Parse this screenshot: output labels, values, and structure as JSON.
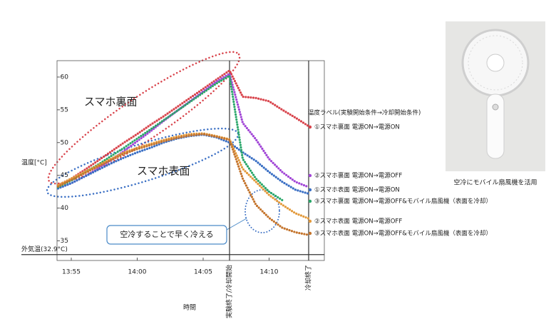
{
  "chart_data": {
    "type": "line",
    "y_label": "温度[°C]",
    "x_label": "時間",
    "categories": [
      null,
      "13:55",
      null,
      null,
      null,
      null,
      "14:00",
      null,
      null,
      null,
      null,
      "14:05",
      null,
      "実験終了/冷却開始",
      null,
      null,
      "14:10",
      null,
      null,
      "冷却終了"
    ],
    "ylim": [
      32,
      62.5
    ],
    "yticks": [
      35,
      40,
      45,
      50,
      55,
      60
    ],
    "hlines": [
      {
        "value": 32.9,
        "label": "外気温(32.9°C)"
      }
    ],
    "legend_title": "温度ラベル(実験開始条件→冷却開始条件)",
    "annotations": [
      "スマホ裏面",
      "スマホ表面",
      "空冷することで早く冷える"
    ],
    "series": [
      {
        "name": "①スマホ裏面 電源ON→電源ON",
        "color": "#d8434b",
        "values": [
          43.5,
          44.5,
          45.8,
          47.2,
          48.6,
          50,
          51.3,
          52.7,
          54,
          55.4,
          56.8,
          58.2,
          59.6,
          61,
          57,
          56.8,
          56.3,
          55,
          53.8,
          52.5
        ]
      },
      {
        "name": "②スマホ裏面 電源ON→電源OFF",
        "color": "#a145d6",
        "values": [
          43,
          43.8,
          44.8,
          46,
          47.3,
          48.7,
          50.2,
          51.7,
          53.3,
          54.8,
          56.3,
          57.8,
          59.3,
          60.5,
          53,
          50.5,
          47.5,
          45.5,
          44,
          43.2
        ]
      },
      {
        "name": "①スマホ表面 電源ON→電源ON",
        "color": "#3a6fc4",
        "values": [
          43,
          43.8,
          44.8,
          45.8,
          46.8,
          47.7,
          48.5,
          49.2,
          50,
          50.6,
          51,
          51.2,
          50.8,
          50,
          48.5,
          47.2,
          45.5,
          44,
          42.8,
          42.2
        ]
      },
      {
        "name": "③スマホ裏面 電源ON→電源OFF&モバイル扇風機（表面を冷却）",
        "color": "#2aa76a",
        "values": [
          43.2,
          44.2,
          45.4,
          46.6,
          47.9,
          49.2,
          50.6,
          52,
          53.4,
          54.8,
          56.2,
          57.6,
          59,
          60.2,
          47.5,
          44.5,
          42.5,
          41.2,
          null,
          null
        ]
      },
      {
        "name": "②スマホ表面 電源ON→電源OFF",
        "color": "#e39a3c",
        "values": [
          43.5,
          44.5,
          45.5,
          46.5,
          47.5,
          48.5,
          49.2,
          49.8,
          50.4,
          50.9,
          51.3,
          51.4,
          51,
          50.5,
          46,
          44,
          42,
          40.5,
          39.2,
          38.4
        ]
      },
      {
        "name": "③スマホ表面 電源ON→電源OFF&モバイル扇風機（表面を冷却）",
        "color": "#c4742c",
        "values": [
          43.3,
          44.3,
          45.3,
          46.3,
          47.3,
          48.3,
          49,
          49.6,
          50.2,
          50.7,
          51.1,
          51.3,
          50.9,
          50.4,
          44.5,
          40.5,
          38.5,
          37,
          36.3,
          35.9
        ]
      }
    ]
  },
  "photo": {
    "caption": "空冷にモバイル扇風機を活用"
  }
}
